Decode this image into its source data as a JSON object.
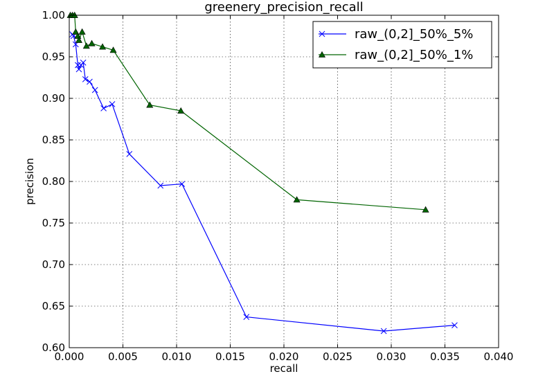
{
  "chart_data": {
    "type": "line",
    "title": "greenery_precision_recall",
    "xlabel": "recall",
    "ylabel": "precision",
    "xlim": [
      0.0,
      0.04
    ],
    "ylim": [
      0.6,
      1.0
    ],
    "xticks": [
      "0.000",
      "0.005",
      "0.010",
      "0.015",
      "0.020",
      "0.025",
      "0.030",
      "0.035",
      "0.040"
    ],
    "yticks": [
      "0.60",
      "0.65",
      "0.70",
      "0.75",
      "0.80",
      "0.85",
      "0.90",
      "0.95",
      "1.00"
    ],
    "grid": true,
    "legend_position": "top-right",
    "series": [
      {
        "name": "raw_(0,2]_50%_5%",
        "color": "#0000ff",
        "marker": "x",
        "x": [
          0.0003,
          0.0004,
          0.0006,
          0.0008,
          0.0009,
          0.0011,
          0.0013,
          0.0015,
          0.0019,
          0.0024,
          0.0032,
          0.004,
          0.0056,
          0.0085,
          0.0105,
          0.0165,
          0.0293,
          0.0359
        ],
        "y": [
          0.977,
          0.975,
          0.965,
          0.94,
          0.935,
          0.94,
          0.943,
          0.923,
          0.92,
          0.91,
          0.888,
          0.893,
          0.833,
          0.795,
          0.797,
          0.637,
          0.62,
          0.627
        ]
      },
      {
        "name": "raw_(0,2]_50%_1%",
        "color": "#006400",
        "marker": "triangle",
        "x": [
          0.0001,
          0.0003,
          0.0005,
          0.0006,
          0.0008,
          0.0009,
          0.0012,
          0.0016,
          0.0021,
          0.0031,
          0.0041,
          0.0075,
          0.0104,
          0.0212,
          0.0332
        ],
        "y": [
          1.0,
          1.0,
          1.0,
          0.98,
          0.975,
          0.97,
          0.98,
          0.963,
          0.966,
          0.962,
          0.958,
          0.892,
          0.885,
          0.778,
          0.766
        ]
      }
    ]
  }
}
